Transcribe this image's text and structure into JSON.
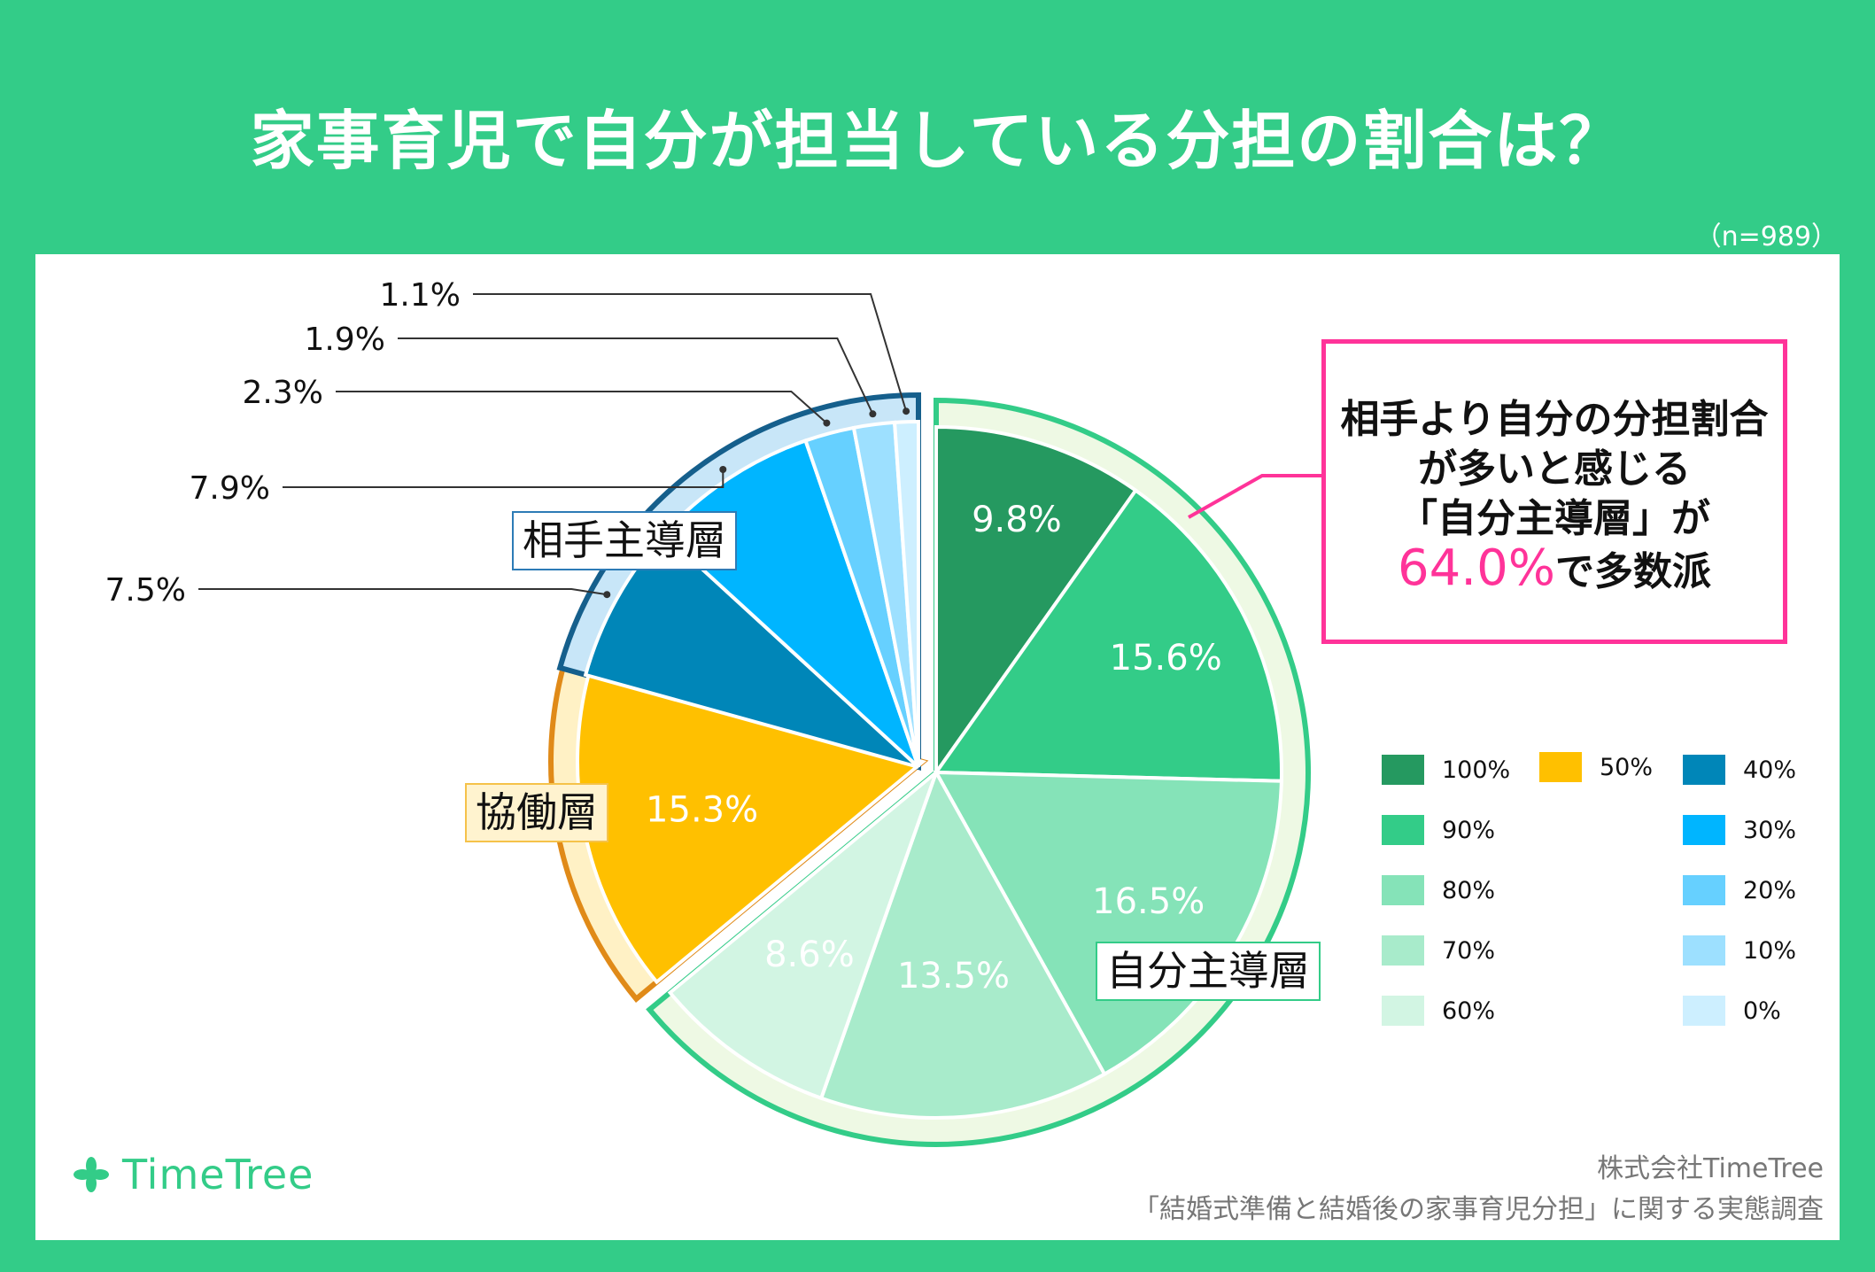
{
  "title": "家事育児で自分が担当している分担の割合は？",
  "sample": "（n=989）",
  "chart_data": {
    "type": "pie",
    "title": "家事育児で自分が担当している分担の割合は？",
    "categories": [
      "100%",
      "90%",
      "80%",
      "70%",
      "60%",
      "50%",
      "40%",
      "30%",
      "20%",
      "10%",
      "0%"
    ],
    "values": [
      9.8,
      15.6,
      16.5,
      13.5,
      8.6,
      15.3,
      7.5,
      7.9,
      2.3,
      1.9,
      1.1
    ],
    "labels": [
      "9.8%",
      "15.6%",
      "16.5%",
      "13.5%",
      "8.6%",
      "15.3%",
      "7.5%",
      "7.9%",
      "2.3%",
      "1.9%",
      "1.1%"
    ],
    "colors": [
      "#259960",
      "#33cc88",
      "#85e3b8",
      "#a8ebcb",
      "#d2f5e3",
      "#ffc000",
      "#0086b8",
      "#00b5ff",
      "#66d0ff",
      "#9de0ff",
      "#cdefff"
    ],
    "groups": [
      {
        "name": "自分主導層",
        "members": [
          "100%",
          "90%",
          "80%",
          "70%",
          "60%"
        ]
      },
      {
        "name": "協働層",
        "members": [
          "50%"
        ]
      },
      {
        "name": "相手主導層",
        "members": [
          "40%",
          "30%",
          "20%",
          "10%",
          "0%"
        ]
      }
    ]
  },
  "callout": {
    "line1": "相手より自分の分担割合",
    "line2": "が多いと感じる",
    "line3": "「自分主導層」が",
    "highlight": "64.0%",
    "line4_suffix": "で多数派"
  },
  "legend": [
    {
      "label": "100%",
      "color": "#259960"
    },
    {
      "label": "90%",
      "color": "#33cc88"
    },
    {
      "label": "80%",
      "color": "#85e3b8"
    },
    {
      "label": "70%",
      "color": "#a8ebcb"
    },
    {
      "label": "60%",
      "color": "#d2f5e3"
    },
    {
      "label": "50%",
      "color": "#ffc000"
    },
    {
      "label": "40%",
      "color": "#0086b8"
    },
    {
      "label": "30%",
      "color": "#00b5ff"
    },
    {
      "label": "20%",
      "color": "#66d0ff"
    },
    {
      "label": "10%",
      "color": "#9de0ff"
    },
    {
      "label": "0%",
      "color": "#cdefff"
    }
  ],
  "brand": "TimeTree",
  "source_company": "株式会社TimeTree",
  "source_survey": "「結婚式準備と結婚後の家事育児分担」に関する実態調査"
}
